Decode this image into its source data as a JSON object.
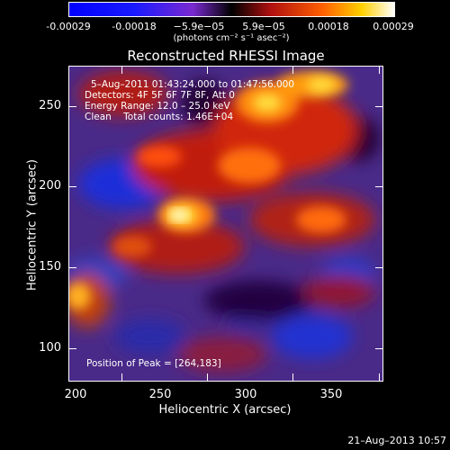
{
  "colorbar": {
    "ticks": [
      "-0.00029",
      "-0.00018",
      "−5.9e−05",
      "5.9e−05",
      "0.00018",
      "0.00029"
    ],
    "unit": "(photons cm⁻² s⁻¹ asec⁻²)"
  },
  "title": "Reconstructed RHESSI Image",
  "info": {
    "time": "5–Aug–2011 01:43:24.000 to 01:47:56.000",
    "detectors": "Detectors: 4F 5F 6F 7F 8F, Att 0",
    "energy": "Energy Range: 12.0 – 25.0 keV",
    "clean": "Clean    Total counts: 1.46E+04",
    "peak": "Position of Peak = [264,183]"
  },
  "axes": {
    "xlabel": "Heliocentric X (arcsec)",
    "ylabel": "Heliocentric Y (arcsec)",
    "xticks": [
      "200",
      "250",
      "300",
      "350"
    ],
    "yticks": [
      "250",
      "200",
      "150",
      "100"
    ]
  },
  "footer": {
    "date": "21–Aug–2013 10:57"
  }
}
